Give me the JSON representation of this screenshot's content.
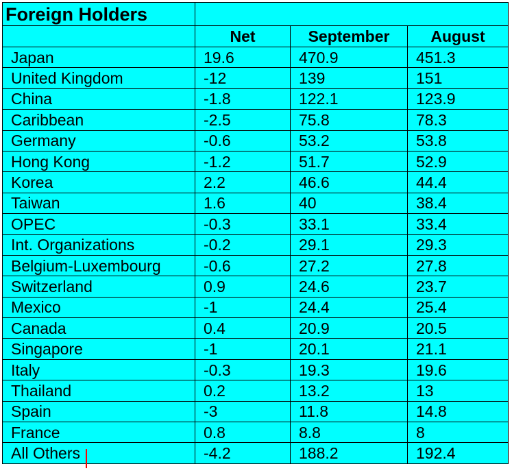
{
  "colors": {
    "background": "#00ffff",
    "text": "#000000",
    "grid": "#000000",
    "marker": "#ff0000"
  },
  "chart_data": {
    "type": "table",
    "title": "Foreign Holders",
    "columns": [
      "",
      "Net",
      "September",
      "August"
    ],
    "rows": [
      [
        "Japan",
        "19.6",
        "470.9",
        "451.3"
      ],
      [
        "United Kingdom",
        "-12",
        "139",
        "151"
      ],
      [
        "China",
        "-1.8",
        "122.1",
        "123.9"
      ],
      [
        "Caribbean",
        "-2.5",
        "75.8",
        "78.3"
      ],
      [
        "Germany",
        "-0.6",
        "53.2",
        "53.8"
      ],
      [
        "Hong Kong",
        "-1.2",
        "51.7",
        "52.9"
      ],
      [
        "Korea",
        "2.2",
        "46.6",
        "44.4"
      ],
      [
        "Taiwan",
        "1.6",
        "40",
        "38.4"
      ],
      [
        "OPEC",
        "-0.3",
        "33.1",
        "33.4"
      ],
      [
        "Int. Organizations",
        "-0.2",
        "29.1",
        "29.3"
      ],
      [
        "Belgium-Luxembourg",
        "-0.6",
        "27.2",
        "27.8"
      ],
      [
        "Switzerland",
        "0.9",
        "24.6",
        "23.7"
      ],
      [
        "Mexico",
        "-1",
        "24.4",
        "25.4"
      ],
      [
        "Canada",
        "0.4",
        "20.9",
        "20.5"
      ],
      [
        "Singapore",
        "-1",
        "20.1",
        "21.1"
      ],
      [
        "Italy",
        "-0.3",
        "19.3",
        "19.6"
      ],
      [
        "Thailand",
        "0.2",
        "13.2",
        "13"
      ],
      [
        "Spain",
        "-3",
        "11.8",
        "14.8"
      ],
      [
        "France",
        "0.8",
        "8.8",
        "8"
      ],
      [
        "All Others",
        "-4.2",
        "188.2",
        "192.4"
      ]
    ]
  }
}
